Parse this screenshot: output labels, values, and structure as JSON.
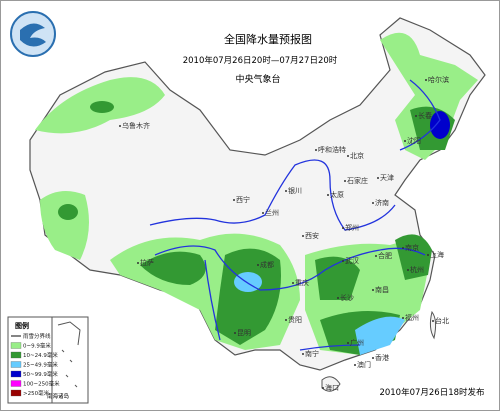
{
  "header": {
    "title": "全国降水量预报图",
    "subtitle": "2010年07月26日20时—07月27日20时",
    "issuer": "中央气象台"
  },
  "legend": {
    "title": "图例",
    "items": [
      {
        "label": "雨雪分界线",
        "color": "#333333"
      },
      {
        "label": "0~9.9毫米",
        "color": "#99ee88"
      },
      {
        "label": "10~24.9毫米",
        "color": "#339933"
      },
      {
        "label": "25~49.9毫米",
        "color": "#66ccff"
      },
      {
        "label": "50~99.9毫米",
        "color": "#0000cc"
      },
      {
        "label": "100~250毫米",
        "color": "#ff00ff"
      },
      {
        "label": ">250毫米",
        "color": "#990000"
      }
    ]
  },
  "cities": [
    "乌鲁木齐",
    "哈尔滨",
    "长春",
    "沈阳",
    "呼和浩特",
    "北京",
    "天津",
    "石家庄",
    "银川",
    "太原",
    "济南",
    "西宁",
    "兰州",
    "郑州",
    "西安",
    "合肥",
    "南京",
    "上海",
    "武汉",
    "杭州",
    "成都",
    "重庆",
    "拉萨",
    "长沙",
    "南昌",
    "福州",
    "贵阳",
    "昆明",
    "台北",
    "广州",
    "南宁",
    "香港",
    "澳门",
    "海口"
  ],
  "inset_label": "南海诸岛",
  "footer": "2010年07月26日18时发布"
}
